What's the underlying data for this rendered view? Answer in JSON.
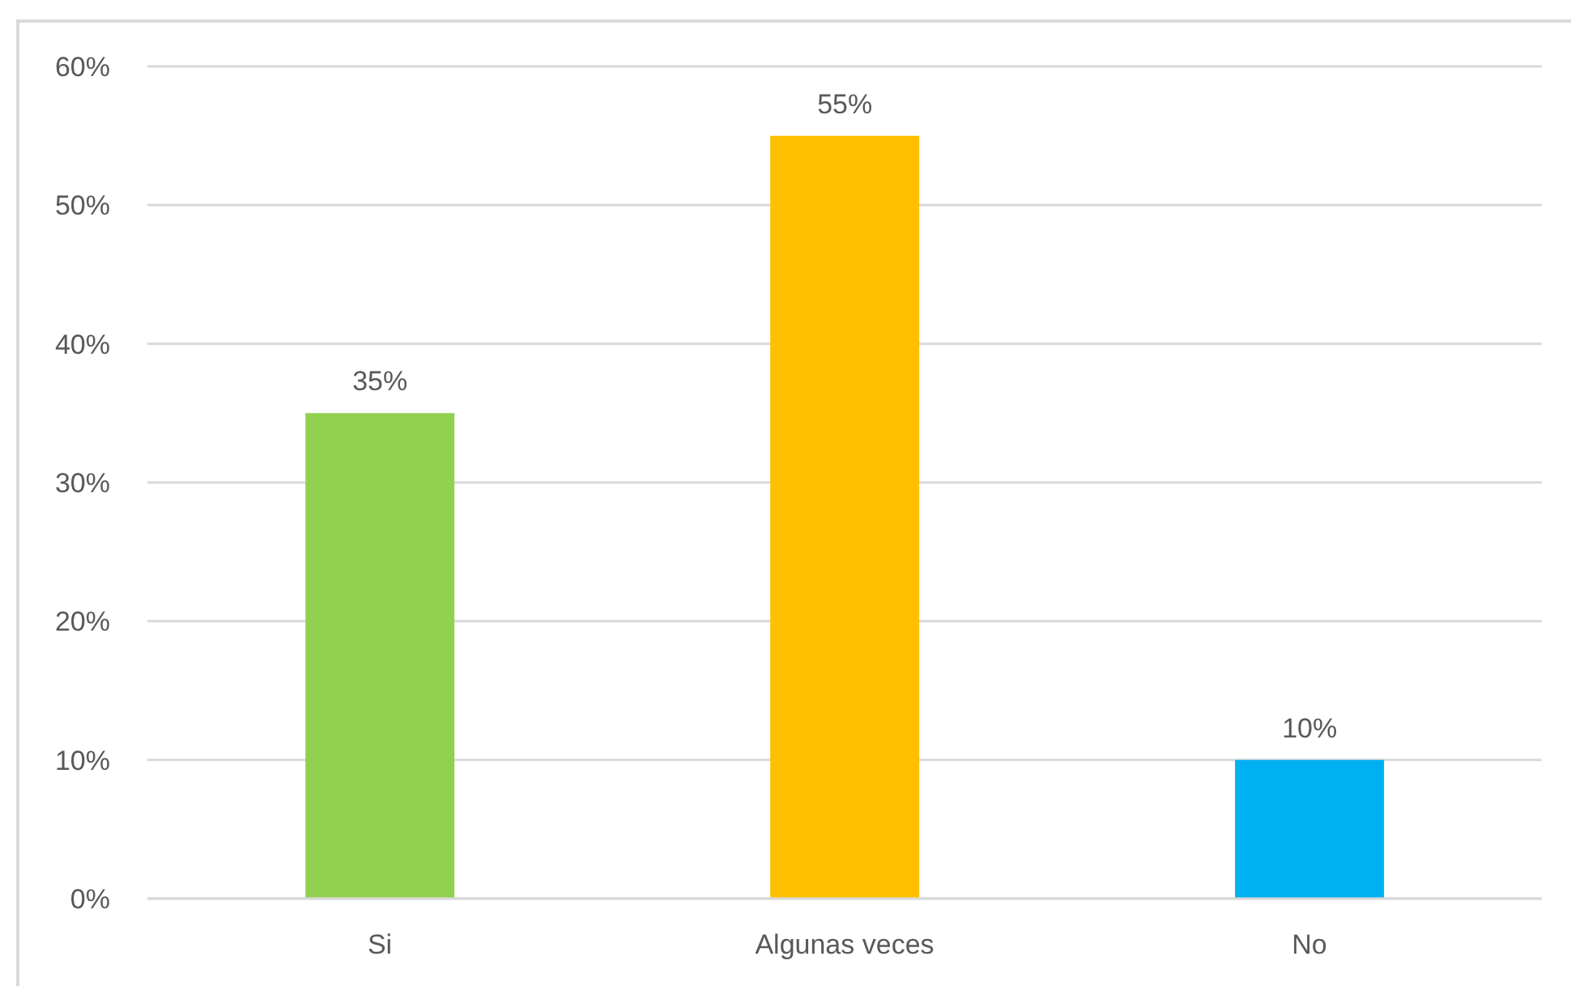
{
  "chart_data": {
    "type": "bar",
    "categories": [
      "Si",
      "Algunas veces",
      "No"
    ],
    "values": [
      35,
      55,
      10
    ],
    "colors": [
      "#92d050",
      "#ffc000",
      "#00b0f0"
    ],
    "value_labels": [
      "35%",
      "55%",
      "10%"
    ],
    "ylim": [
      0,
      60
    ],
    "yticks": [
      {
        "value": 0,
        "label": "0%"
      },
      {
        "value": 10,
        "label": "10%"
      },
      {
        "value": 20,
        "label": "20%"
      },
      {
        "value": 30,
        "label": "30%"
      },
      {
        "value": 40,
        "label": "40%"
      },
      {
        "value": 50,
        "label": "50%"
      },
      {
        "value": 60,
        "label": "60%"
      }
    ],
    "grid": "y"
  }
}
